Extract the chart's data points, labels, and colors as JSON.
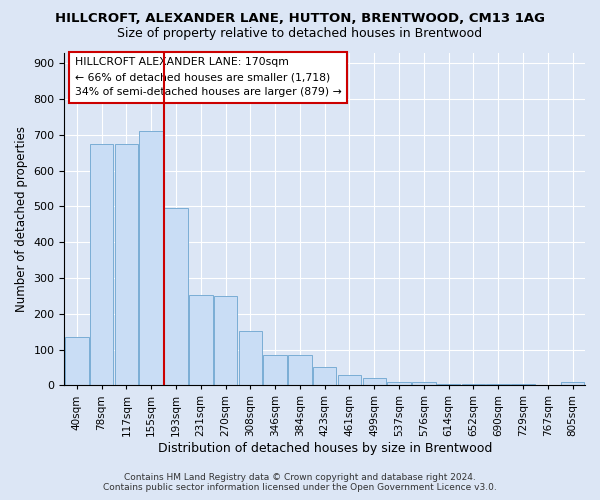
{
  "title": "HILLCROFT, ALEXANDER LANE, HUTTON, BRENTWOOD, CM13 1AG",
  "subtitle": "Size of property relative to detached houses in Brentwood",
  "xlabel": "Distribution of detached houses by size in Brentwood",
  "ylabel": "Number of detached properties",
  "footer_line1": "Contains HM Land Registry data © Crown copyright and database right 2024.",
  "footer_line2": "Contains public sector information licensed under the Open Government Licence v3.0.",
  "annotation_line1": "HILLCROFT ALEXANDER LANE: 170sqm",
  "annotation_line2": "← 66% of detached houses are smaller (1,718)",
  "annotation_line3": "34% of semi-detached houses are larger (879) →",
  "bar_color": "#c9ddf5",
  "bar_edge_color": "#7aadd4",
  "vline_color": "#cc0000",
  "vline_x_index": 3,
  "categories": [
    "40sqm",
    "78sqm",
    "117sqm",
    "155sqm",
    "193sqm",
    "231sqm",
    "270sqm",
    "308sqm",
    "346sqm",
    "384sqm",
    "423sqm",
    "461sqm",
    "499sqm",
    "537sqm",
    "576sqm",
    "614sqm",
    "652sqm",
    "690sqm",
    "729sqm",
    "767sqm",
    "805sqm"
  ],
  "values": [
    135,
    675,
    675,
    710,
    495,
    252,
    250,
    153,
    85,
    85,
    50,
    28,
    20,
    8,
    8,
    5,
    4,
    3,
    3,
    2,
    10
  ],
  "ylim": [
    0,
    930
  ],
  "yticks": [
    0,
    100,
    200,
    300,
    400,
    500,
    600,
    700,
    800,
    900
  ],
  "background_color": "#dce6f5",
  "grid_color": "#ffffff",
  "annotation_box_color": "#ffffff",
  "annotation_box_edge": "#cc0000",
  "title_fontsize": 9.5,
  "subtitle_fontsize": 9,
  "ylabel_fontsize": 8.5,
  "xlabel_fontsize": 9,
  "tick_fontsize": 8,
  "xtick_fontsize": 7.5,
  "footer_fontsize": 6.5
}
